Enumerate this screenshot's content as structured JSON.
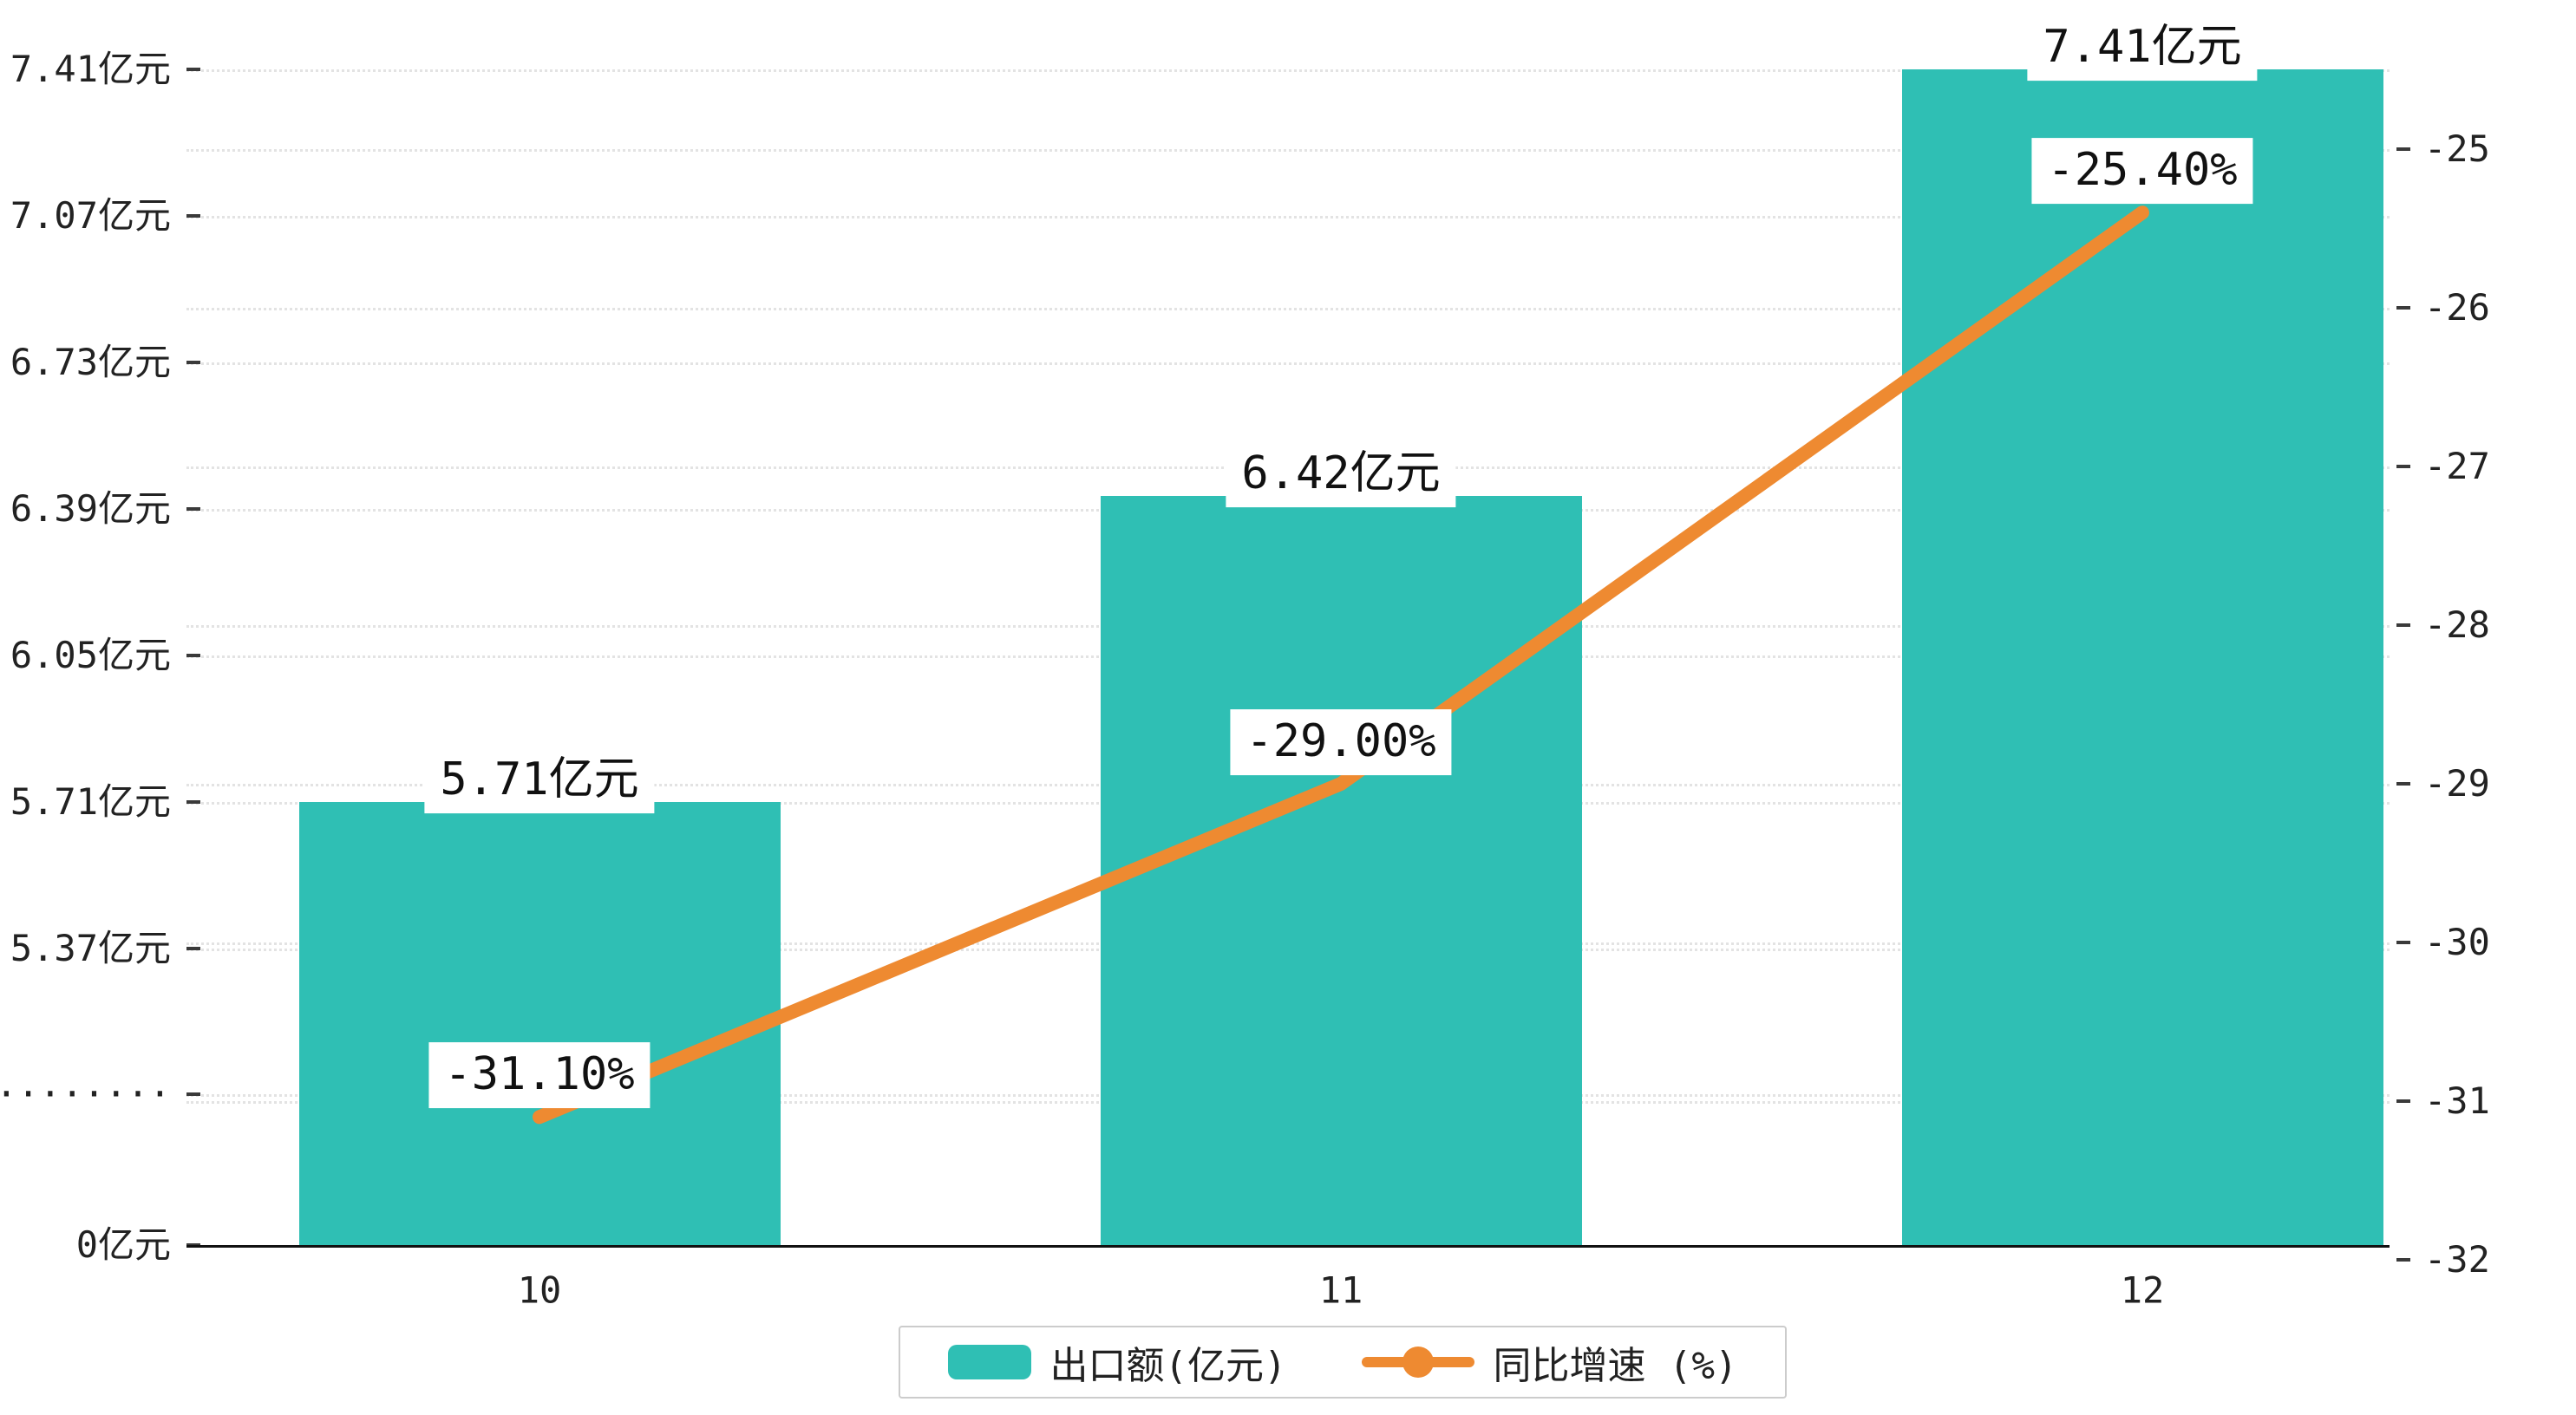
{
  "chart_data": {
    "type": "combo",
    "categories": [
      "10",
      "11",
      "12"
    ],
    "series": [
      {
        "name": "出口额(亿元)",
        "type": "bar",
        "unit": "亿元",
        "values": [
          5.71,
          6.42,
          7.41
        ],
        "data_labels": [
          "5.71亿元",
          "6.42亿元",
          "7.41亿元"
        ],
        "color": "#2fbfb4"
      },
      {
        "name": "同比增速 (%)",
        "type": "line",
        "unit": "%",
        "values": [
          -31.1,
          -29.0,
          -25.4
        ],
        "data_labels": [
          "-31.10%",
          "-29.00%",
          "-25.40%"
        ],
        "color": "#ee8a31"
      }
    ],
    "left_axis": {
      "tick_labels": [
        "7.41亿元",
        "7.07亿元",
        "6.73亿元",
        "6.39亿元",
        "6.05亿元",
        "5.71亿元",
        "5.37亿元",
        "·········",
        "0亿元"
      ],
      "tick_step": 0.34,
      "axis_break": "between 0 and 5.37"
    },
    "right_axis": {
      "tick_labels": [
        "-25",
        "-26",
        "-27",
        "-28",
        "-29",
        "-30",
        "-31",
        "-32"
      ],
      "ylim": [
        -32,
        -25
      ]
    },
    "legend": {
      "position": "bottom-center",
      "items": [
        {
          "label": "出口额(亿元)",
          "marker": "bar-swatch",
          "color": "#2fbfb4"
        },
        {
          "label": "同比增速 (%)",
          "marker": "line-dot",
          "color": "#ee8a31"
        }
      ]
    },
    "grid": "dotted-horizontal",
    "background": "#ffffff"
  }
}
